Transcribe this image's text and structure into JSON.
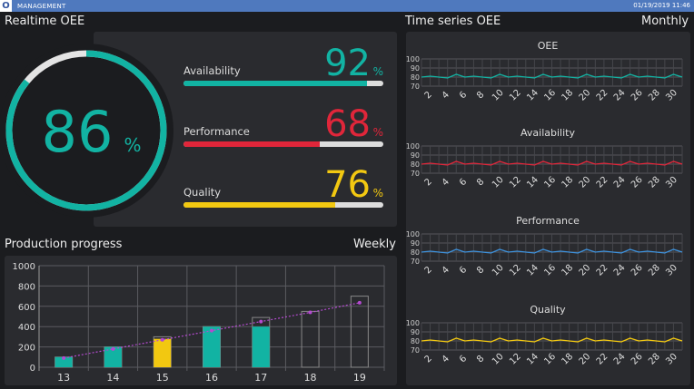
{
  "header": {
    "app": "MANAGEMENT",
    "logo": "O",
    "datetime": "01/19/2019 11:46"
  },
  "realtime": {
    "title": "Realtime OEE",
    "oee": {
      "value": 86,
      "unit": "%"
    },
    "metrics": [
      {
        "label": "Availability",
        "value": 92,
        "unit": "%",
        "color": "#12b3a3"
      },
      {
        "label": "Performance",
        "value": 68,
        "unit": "%",
        "color": "#e0263a"
      },
      {
        "label": "Quality",
        "value": 76,
        "unit": "%",
        "color": "#f2c811"
      }
    ]
  },
  "timeseries": {
    "title": "Time series OEE",
    "period": "Monthly"
  },
  "production": {
    "title": "Production progress",
    "period": "Weekly"
  },
  "chart_data": [
    {
      "type": "bar",
      "title": "Production progress",
      "categories": [
        "13",
        "14",
        "15",
        "16",
        "17",
        "18",
        "19"
      ],
      "ylim": [
        0,
        1000
      ],
      "yticks": [
        0,
        200,
        400,
        600,
        800,
        1000
      ],
      "grid": true,
      "series": [
        {
          "values": [
            100,
            200,
            280,
            400,
            400,
            0,
            0
          ],
          "colors": [
            "#12b3a3",
            "#12b3a3",
            "#f2c811",
            "#12b3a3",
            "#12b3a3",
            "#12b3a3",
            "#12b3a3"
          ]
        },
        {
          "values": [
            100,
            200,
            300,
            400,
            490,
            550,
            700
          ],
          "style": "outline"
        },
        {
          "values": [
            90,
            180,
            270,
            360,
            450,
            540,
            635
          ],
          "style": "dotted-line",
          "color": "#b44ad0"
        }
      ]
    },
    {
      "type": "line",
      "title": "OEE",
      "color": "#12b3a3",
      "ylim": [
        70,
        100
      ],
      "yticks": [
        70,
        80,
        90,
        100
      ],
      "x": [
        1,
        2,
        3,
        4,
        5,
        6,
        7,
        8,
        9,
        10,
        11,
        12,
        13,
        14,
        15,
        16,
        17,
        18,
        19,
        20,
        21,
        22,
        23,
        24,
        25,
        26,
        27,
        28,
        29,
        30,
        31
      ],
      "xticks": [
        2,
        4,
        6,
        8,
        10,
        12,
        14,
        16,
        18,
        20,
        22,
        24,
        26,
        28,
        30
      ],
      "values": [
        80,
        81,
        80,
        79,
        83,
        80,
        81,
        80,
        79,
        83,
        80,
        81,
        80,
        79,
        83,
        80,
        81,
        80,
        79,
        83,
        80,
        81,
        80,
        79,
        83,
        80,
        81,
        80,
        79,
        83,
        80
      ]
    },
    {
      "type": "line",
      "title": "Availability",
      "color": "#e0263a",
      "ylim": [
        70,
        100
      ],
      "yticks": [
        70,
        80,
        90,
        100
      ],
      "x": [
        1,
        2,
        3,
        4,
        5,
        6,
        7,
        8,
        9,
        10,
        11,
        12,
        13,
        14,
        15,
        16,
        17,
        18,
        19,
        20,
        21,
        22,
        23,
        24,
        25,
        26,
        27,
        28,
        29,
        30,
        31
      ],
      "xticks": [
        2,
        4,
        6,
        8,
        10,
        12,
        14,
        16,
        18,
        20,
        22,
        24,
        26,
        28,
        30
      ],
      "values": [
        80,
        81,
        80,
        79,
        83,
        80,
        81,
        80,
        79,
        83,
        80,
        81,
        80,
        79,
        83,
        80,
        81,
        80,
        79,
        83,
        80,
        81,
        80,
        79,
        83,
        80,
        81,
        80,
        79,
        83,
        80
      ]
    },
    {
      "type": "line",
      "title": "Performance",
      "color": "#3d8fd8",
      "ylim": [
        70,
        100
      ],
      "yticks": [
        70,
        80,
        90,
        100
      ],
      "x": [
        1,
        2,
        3,
        4,
        5,
        6,
        7,
        8,
        9,
        10,
        11,
        12,
        13,
        14,
        15,
        16,
        17,
        18,
        19,
        20,
        21,
        22,
        23,
        24,
        25,
        26,
        27,
        28,
        29,
        30,
        31
      ],
      "xticks": [
        2,
        4,
        6,
        8,
        10,
        12,
        14,
        16,
        18,
        20,
        22,
        24,
        26,
        28,
        30
      ],
      "values": [
        80,
        81,
        80,
        79,
        83,
        80,
        81,
        80,
        79,
        83,
        80,
        81,
        80,
        79,
        83,
        80,
        81,
        80,
        79,
        83,
        80,
        81,
        80,
        79,
        83,
        80,
        81,
        80,
        79,
        83,
        80
      ]
    },
    {
      "type": "line",
      "title": "Quality",
      "color": "#f2c811",
      "ylim": [
        70,
        100
      ],
      "yticks": [
        70,
        80,
        90,
        100
      ],
      "x": [
        1,
        2,
        3,
        4,
        5,
        6,
        7,
        8,
        9,
        10,
        11,
        12,
        13,
        14,
        15,
        16,
        17,
        18,
        19,
        20,
        21,
        22,
        23,
        24,
        25,
        26,
        27,
        28,
        29,
        30,
        31
      ],
      "xticks": [
        2,
        4,
        6,
        8,
        10,
        12,
        14,
        16,
        18,
        20,
        22,
        24,
        26,
        28,
        30
      ],
      "values": [
        80,
        81,
        80,
        79,
        83,
        80,
        81,
        80,
        79,
        83,
        80,
        81,
        80,
        79,
        83,
        80,
        81,
        80,
        79,
        83,
        80,
        81,
        80,
        79,
        83,
        80,
        81,
        80,
        79,
        83,
        80
      ]
    }
  ]
}
